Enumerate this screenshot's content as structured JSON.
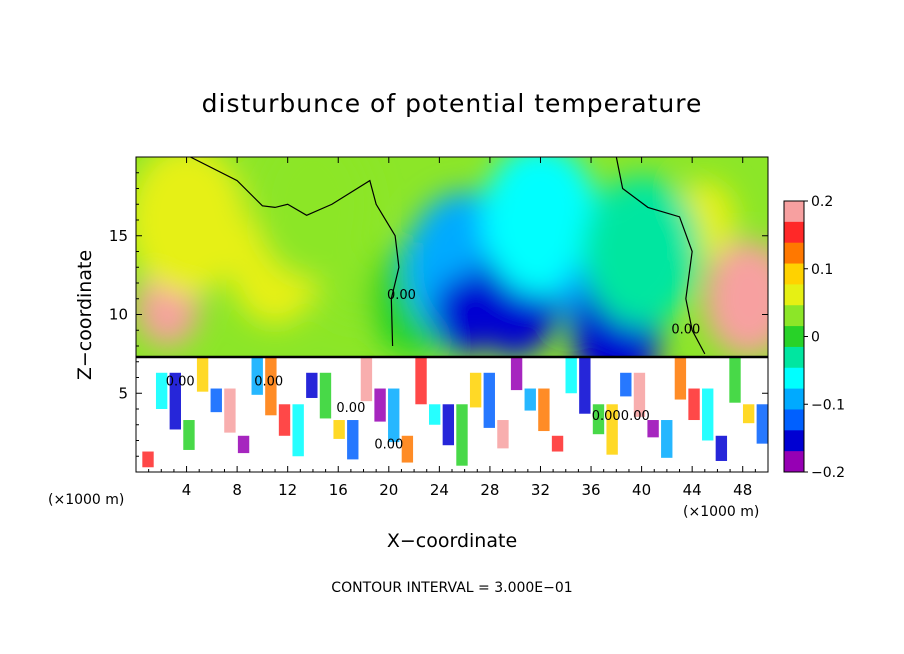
{
  "chart_data": {
    "type": "heatmap",
    "title": "disturbunce of potential temperature",
    "xlabel": "X−coordinate",
    "ylabel": "Z−coordinate",
    "x_unit_left": "(×1000 m)",
    "x_unit_right": "(×1000 m)",
    "footer": "CONTOUR INTERVAL = 3.000E−01",
    "xlim": [
      0,
      50
    ],
    "ylim": [
      0,
      20
    ],
    "xticks": [
      4,
      8,
      12,
      16,
      20,
      24,
      28,
      32,
      36,
      40,
      44,
      48
    ],
    "xtick_labels": [
      "4",
      "8",
      "12",
      "16",
      "20",
      "24",
      "28",
      "32",
      "36",
      "40",
      "44",
      "48"
    ],
    "yticks": [
      5,
      10,
      15
    ],
    "ytick_labels": [
      "5",
      "10",
      "15"
    ],
    "colorbar": {
      "range": [
        -0.2,
        0.2
      ],
      "ticks": [
        0.2,
        0.1,
        0,
        -0.1,
        -0.2
      ],
      "tick_labels": [
        "0.2",
        "0.1",
        "0",
        "−0.1",
        "−0.2"
      ],
      "colors": [
        "#f7a0a0",
        "#ff2828",
        "#ff7800",
        "#ffd200",
        "#e6f014",
        "#8ce628",
        "#28d228",
        "#00e6a0",
        "#00ffff",
        "#00aaff",
        "#0060ff",
        "#0000d2",
        "#9600b4"
      ]
    },
    "contour_labels": [
      "0.00",
      "0.00",
      "0.00",
      "0.00",
      "0.00",
      "0.00",
      "0.00",
      "0.00"
    ],
    "field_features": [
      {
        "x": 2.5,
        "z": 10.5,
        "value": 0.18
      },
      {
        "x": 48.5,
        "z": 11.0,
        "value": 0.17
      },
      {
        "x": 4,
        "z": 16,
        "value": 0.07
      },
      {
        "x": 45,
        "z": 16,
        "value": 0.07
      },
      {
        "x": 11,
        "z": 13,
        "value": 0.06
      },
      {
        "x": 14,
        "z": 17,
        "value": 0.03
      },
      {
        "x": 17,
        "z": 12,
        "value": 0.03
      },
      {
        "x": 22,
        "z": 11,
        "value": 0.0
      },
      {
        "x": 26,
        "z": 13,
        "value": -0.09
      },
      {
        "x": 26,
        "z": 10,
        "value": -0.15
      },
      {
        "x": 30,
        "z": 11,
        "value": -0.16
      },
      {
        "x": 32,
        "z": 16,
        "value": -0.06
      },
      {
        "x": 36,
        "z": 11,
        "value": -0.08
      },
      {
        "x": 38,
        "z": 9,
        "value": -0.15
      },
      {
        "x": 40,
        "z": 14,
        "value": -0.02
      }
    ]
  }
}
